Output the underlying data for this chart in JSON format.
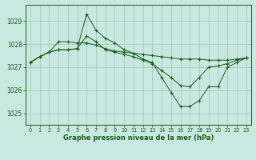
{
  "x": [
    0,
    1,
    2,
    3,
    4,
    5,
    6,
    7,
    8,
    9,
    10,
    11,
    12,
    13,
    14,
    15,
    16,
    17,
    18,
    19,
    20,
    21,
    22,
    23
  ],
  "line1": [
    1027.2,
    1027.45,
    1027.65,
    1028.1,
    1028.1,
    1028.05,
    1028.05,
    1027.95,
    1027.8,
    1027.7,
    1027.65,
    1027.6,
    1027.55,
    1027.5,
    1027.45,
    1027.4,
    1027.35,
    1027.35,
    1027.35,
    1027.3,
    1027.3,
    1027.3,
    1027.35,
    1027.4
  ],
  "line2": [
    1027.2,
    1027.45,
    1027.65,
    1027.75,
    1027.75,
    1027.8,
    1028.35,
    1028.1,
    1027.75,
    1027.65,
    1027.55,
    1027.45,
    1027.3,
    1027.15,
    1026.85,
    1026.55,
    1026.2,
    1026.15,
    1026.55,
    1027.0,
    1027.05,
    1027.15,
    1027.3,
    1027.4
  ],
  "line3": [
    1027.2,
    1027.45,
    1027.65,
    1027.75,
    1027.75,
    1027.8,
    1029.3,
    1028.6,
    1028.25,
    1028.05,
    1027.75,
    1027.6,
    1027.35,
    1027.2,
    1026.55,
    1025.9,
    1025.3,
    1025.3,
    1025.55,
    1026.15,
    1026.15,
    1027.0,
    1027.2,
    1027.4
  ],
  "line_color": "#1a5c1a",
  "bg_color": "#c8e8e0",
  "grid_color": "#a0c4bc",
  "xlabel": "Graphe pression niveau de la mer (hPa)",
  "ylim": [
    1024.5,
    1029.7
  ],
  "yticks": [
    1025,
    1026,
    1027,
    1028,
    1029
  ],
  "xticks": [
    0,
    1,
    2,
    3,
    4,
    5,
    6,
    7,
    8,
    9,
    10,
    11,
    12,
    13,
    14,
    15,
    16,
    17,
    18,
    19,
    20,
    21,
    22,
    23
  ]
}
